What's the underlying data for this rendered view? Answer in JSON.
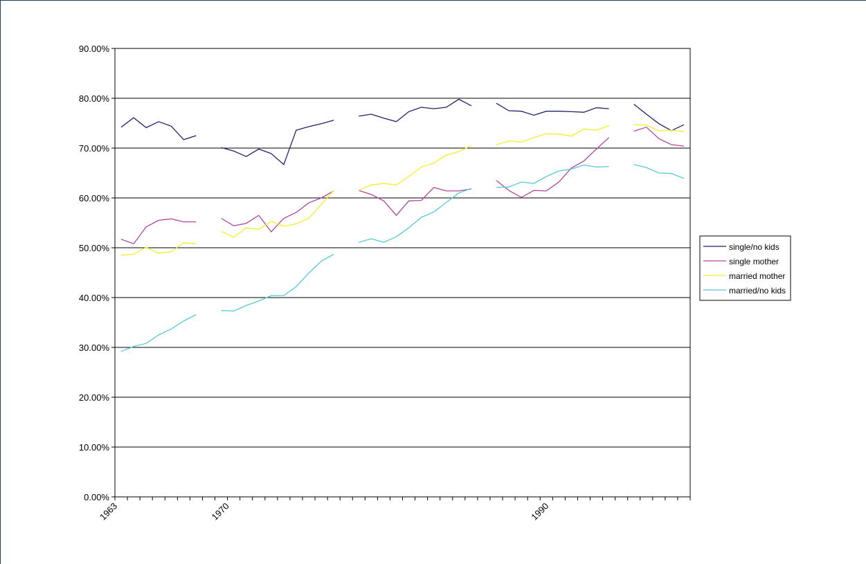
{
  "chart_data": {
    "type": "line",
    "title": "",
    "xlabel": "",
    "ylabel": "",
    "x_start": 1963,
    "x_end": 1999,
    "x_tick_labels": [
      "1963",
      "1970",
      "1990"
    ],
    "y_tick_labels": [
      "0.00%",
      "10.00%",
      "20.00%",
      "30.00%",
      "40.00%",
      "50.00%",
      "60.00%",
      "70.00%",
      "80.00%",
      "90.00%"
    ],
    "ylim": [
      0,
      90
    ],
    "grid": true,
    "legend_position": "right",
    "series": [
      {
        "name": "single/no kids",
        "color": "#1f1f6b",
        "values": [
          74.2,
          76.1,
          74.1,
          75.3,
          74.4,
          71.7,
          72.5,
          null,
          70.1,
          69.4,
          68.3,
          69.8,
          68.9,
          66.7,
          73.6,
          74.3,
          74.9,
          75.6,
          null,
          76.4,
          76.8,
          76.0,
          75.3,
          77.3,
          78.2,
          77.9,
          78.2,
          79.8,
          78.5,
          null,
          79.0,
          77.5,
          77.4,
          76.6,
          77.4,
          77.4,
          77.3,
          77.2,
          78.1,
          77.9,
          null,
          78.8,
          76.8,
          74.9,
          73.5,
          74.7
        ]
      },
      {
        "name": "single mother",
        "color": "#b5459a",
        "values": [
          51.7,
          50.8,
          54.2,
          55.5,
          55.8,
          55.2,
          55.2,
          null,
          55.9,
          54.4,
          54.9,
          56.5,
          53.2,
          55.9,
          57.1,
          59.0,
          60.0,
          61.4,
          null,
          61.5,
          60.7,
          59.4,
          56.5,
          59.4,
          59.5,
          62.1,
          61.4,
          61.4,
          61.8,
          null,
          63.5,
          61.5,
          60.1,
          61.5,
          61.4,
          63.2,
          66.0,
          67.4,
          69.8,
          72.1,
          null,
          73.4,
          74.2,
          71.9,
          70.7,
          70.4
        ]
      },
      {
        "name": "married mother",
        "color": "#f2ee2a",
        "values": [
          48.5,
          48.7,
          50.1,
          48.9,
          49.2,
          51.0,
          50.8,
          null,
          53.3,
          52.1,
          54.0,
          53.7,
          55.3,
          54.3,
          54.8,
          55.9,
          58.7,
          61.5,
          null,
          61.5,
          62.6,
          62.9,
          62.6,
          64.3,
          66.2,
          67.0,
          68.6,
          69.3,
          70.5,
          null,
          70.7,
          71.4,
          71.2,
          72.1,
          72.9,
          72.8,
          72.4,
          73.8,
          73.6,
          74.5,
          null,
          74.7,
          74.6,
          73.5,
          73.6,
          73.3
        ]
      },
      {
        "name": "married/no kids",
        "color": "#56c8d6",
        "values": [
          29.2,
          30.2,
          30.8,
          32.5,
          33.7,
          35.3,
          36.6,
          null,
          37.4,
          37.3,
          38.4,
          39.3,
          40.4,
          40.4,
          42.2,
          44.9,
          47.3,
          48.7,
          null,
          51.1,
          51.8,
          51.1,
          52.2,
          54.0,
          56.1,
          57.2,
          59.1,
          61.0,
          61.9,
          null,
          62.1,
          62.2,
          63.2,
          62.9,
          64.3,
          65.4,
          65.8,
          66.6,
          66.2,
          66.3,
          null,
          66.7,
          66.1,
          65.0,
          64.9,
          63.9
        ]
      }
    ]
  }
}
